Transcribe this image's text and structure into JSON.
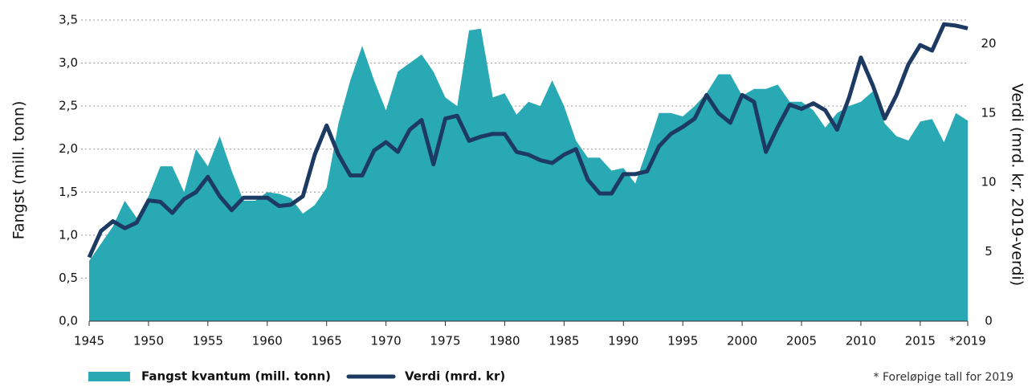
{
  "chart_data": {
    "type": "area-line",
    "ylabel": "Fangst  (mill. tonn)",
    "y2label": "Verdi  (mrd. kr,  2019-verdi)",
    "note": "* Foreløpige tall for 2019",
    "x": [
      1945,
      1946,
      1947,
      1948,
      1949,
      1950,
      1951,
      1952,
      1953,
      1954,
      1955,
      1956,
      1957,
      1958,
      1959,
      1960,
      1961,
      1962,
      1963,
      1964,
      1965,
      1966,
      1967,
      1968,
      1969,
      1970,
      1971,
      1972,
      1973,
      1974,
      1975,
      1976,
      1977,
      1978,
      1979,
      1980,
      1981,
      1982,
      1983,
      1984,
      1985,
      1986,
      1987,
      1988,
      1989,
      1990,
      1991,
      1992,
      1993,
      1994,
      1995,
      1996,
      1997,
      1998,
      1999,
      2000,
      2001,
      2002,
      2003,
      2004,
      2005,
      2006,
      2007,
      2008,
      2009,
      2010,
      2011,
      2012,
      2013,
      2014,
      2015,
      2016,
      2017,
      2018,
      2019
    ],
    "series": [
      {
        "name": "Fangst kvantum (mill. tonn)",
        "color": "#29a9b4",
        "values": [
          0.7,
          0.9,
          1.1,
          1.4,
          1.2,
          1.45,
          1.8,
          1.8,
          1.5,
          2.0,
          1.8,
          2.15,
          1.75,
          1.4,
          1.4,
          1.5,
          1.48,
          1.43,
          1.25,
          1.35,
          1.55,
          2.3,
          2.8,
          3.2,
          2.8,
          2.45,
          2.9,
          3.0,
          3.1,
          2.9,
          2.6,
          2.5,
          3.38,
          3.4,
          2.6,
          2.65,
          2.4,
          2.55,
          2.5,
          2.8,
          2.5,
          2.1,
          1.9,
          1.9,
          1.75,
          1.78,
          1.6,
          2.0,
          2.42,
          2.42,
          2.38,
          2.5,
          2.65,
          2.87,
          2.87,
          2.62,
          2.7,
          2.7,
          2.75,
          2.55,
          2.55,
          2.45,
          2.25,
          2.42,
          2.5,
          2.55,
          2.67,
          2.3,
          2.15,
          2.1,
          2.32,
          2.35,
          2.08,
          2.42,
          2.33
        ]
      },
      {
        "name": "Verdi (mrd. kr)",
        "color": "#1d3a63",
        "axis": "y2",
        "values": [
          4.6,
          6.5,
          7.2,
          6.7,
          7.1,
          8.7,
          8.6,
          7.8,
          8.8,
          9.3,
          10.4,
          9.0,
          8.0,
          8.9,
          8.9,
          8.9,
          8.3,
          8.4,
          9.0,
          12.0,
          14.1,
          12.0,
          10.5,
          10.5,
          12.3,
          12.9,
          12.2,
          13.8,
          14.5,
          11.3,
          14.6,
          14.8,
          13.0,
          13.3,
          13.5,
          13.5,
          12.2,
          12.0,
          11.6,
          11.4,
          12.0,
          12.4,
          10.2,
          9.2,
          9.2,
          10.6,
          10.6,
          10.8,
          12.6,
          13.5,
          14.0,
          14.6,
          16.3,
          15.0,
          14.3,
          16.3,
          15.8,
          12.2,
          14.0,
          15.6,
          15.3,
          15.7,
          15.2,
          13.8,
          16.1,
          19.0,
          17.0,
          14.6,
          16.3,
          18.5,
          19.9,
          19.5,
          21.4,
          21.3,
          21.1
        ]
      }
    ],
    "xlim": [
      1945,
      2019
    ],
    "xticks": [
      1945,
      1950,
      1955,
      1960,
      1965,
      1970,
      1975,
      1980,
      1985,
      1990,
      1995,
      2000,
      2005,
      2010,
      2015,
      {
        "value": 2019,
        "label": "*2019"
      }
    ],
    "ylim": [
      0,
      3.5
    ],
    "yticks": [
      {
        "value": 0,
        "label": "0,0"
      },
      {
        "value": 0.5,
        "label": "0,5"
      },
      {
        "value": 1,
        "label": "1,0"
      },
      {
        "value": 1.5,
        "label": "1,5"
      },
      {
        "value": 2,
        "label": "2,0"
      },
      {
        "value": 2.5,
        "label": "2,5"
      },
      {
        "value": 3,
        "label": "3,0"
      },
      {
        "value": 3.5,
        "label": "3,5"
      }
    ],
    "y2lim": [
      0,
      21.7
    ],
    "y2ticks": [
      0,
      5,
      10,
      15,
      20
    ],
    "grid": true
  }
}
